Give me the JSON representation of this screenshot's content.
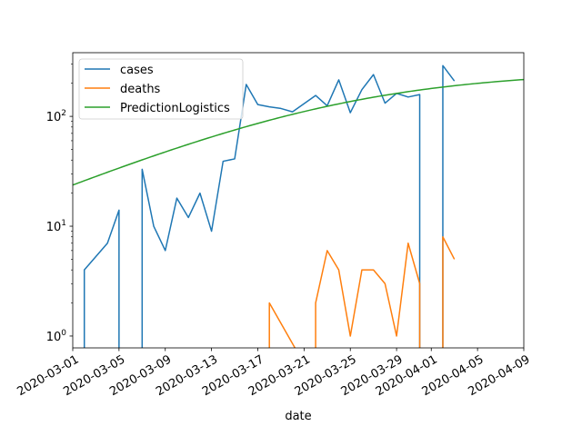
{
  "chart_data": {
    "type": "line",
    "title": "",
    "xlabel": "date",
    "ylabel": "",
    "yscale": "log",
    "xlim": [
      "2020-03-01",
      "2020-04-09"
    ],
    "ylim": [
      0.78,
      380
    ],
    "grid": false,
    "legend_position": "upper-left",
    "x_ticks": [
      "2020-03-01",
      "2020-03-05",
      "2020-03-09",
      "2020-03-13",
      "2020-03-17",
      "2020-03-21",
      "2020-03-25",
      "2020-03-29",
      "2020-04-01",
      "2020-04-05",
      "2020-04-09"
    ],
    "y_ticks": [
      {
        "label_base": "10",
        "label_exp": "0",
        "value": 1
      },
      {
        "label_base": "10",
        "label_exp": "1",
        "value": 10
      },
      {
        "label_base": "10",
        "label_exp": "2",
        "value": 100
      }
    ],
    "series": [
      {
        "name": "cases",
        "color": "#1f77b4",
        "points": [
          [
            "2020-03-02",
            0
          ],
          [
            "2020-03-02",
            4
          ],
          [
            "2020-03-04",
            7
          ],
          [
            "2020-03-05",
            14
          ],
          [
            "2020-03-05",
            0
          ],
          [
            "2020-03-07",
            0
          ],
          [
            "2020-03-07",
            33
          ],
          [
            "2020-03-08",
            10
          ],
          [
            "2020-03-09",
            6
          ],
          [
            "2020-03-10",
            18
          ],
          [
            "2020-03-11",
            12
          ],
          [
            "2020-03-12",
            20
          ],
          [
            "2020-03-13",
            9
          ],
          [
            "2020-03-14",
            39
          ],
          [
            "2020-03-15",
            41
          ],
          [
            "2020-03-16",
            195
          ],
          [
            "2020-03-17",
            128
          ],
          [
            "2020-03-18",
            122
          ],
          [
            "2020-03-19",
            118
          ],
          [
            "2020-03-20",
            110
          ],
          [
            "2020-03-22",
            155
          ],
          [
            "2020-03-23",
            125
          ],
          [
            "2020-03-24",
            215
          ],
          [
            "2020-03-25",
            108
          ],
          [
            "2020-03-26",
            175
          ],
          [
            "2020-03-27",
            240
          ],
          [
            "2020-03-28",
            132
          ],
          [
            "2020-03-29",
            162
          ],
          [
            "2020-03-30",
            150
          ],
          [
            "2020-03-31",
            158
          ],
          [
            "2020-03-31",
            0
          ],
          [
            "2020-04-02",
            0
          ],
          [
            "2020-04-02",
            290
          ],
          [
            "2020-04-03",
            210
          ]
        ]
      },
      {
        "name": "deaths",
        "color": "#ff7f0e",
        "points": [
          [
            "2020-03-18",
            0
          ],
          [
            "2020-03-18",
            2
          ],
          [
            "2020-03-22",
            0
          ],
          [
            "2020-03-22",
            2
          ],
          [
            "2020-03-23",
            6
          ],
          [
            "2020-03-24",
            4
          ],
          [
            "2020-03-25",
            1
          ],
          [
            "2020-03-26",
            4
          ],
          [
            "2020-03-27",
            4
          ],
          [
            "2020-03-28",
            3
          ],
          [
            "2020-03-29",
            1
          ],
          [
            "2020-03-30",
            7
          ],
          [
            "2020-03-31",
            3
          ],
          [
            "2020-03-31",
            0
          ],
          [
            "2020-04-02",
            0
          ],
          [
            "2020-04-02",
            8
          ],
          [
            "2020-04-03",
            5
          ]
        ]
      },
      {
        "name": "PredictionLogistics",
        "color": "#2ca02c",
        "logistic": {
          "K": 260,
          "r": 0.1,
          "x0": "2020-03-24"
        }
      }
    ]
  }
}
